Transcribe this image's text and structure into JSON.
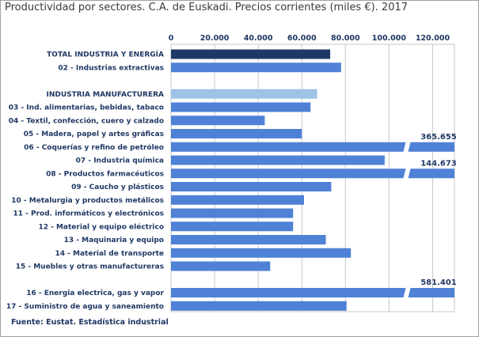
{
  "chart_data": {
    "type": "bar",
    "orientation": "horizontal",
    "title": "Productividad por sectores. C.A. de Euskadi. Precios corrientes (miles €). 2017",
    "source": "Fuente: Eustat. Estadística industrial",
    "xlim": [
      0,
      130000
    ],
    "xticks": [
      "0",
      "20.000",
      "40.000",
      "60.000",
      "80.000",
      "100.000",
      "120.000"
    ],
    "xtick_values": [
      0,
      20000,
      40000,
      60000,
      80000,
      100000,
      120000
    ],
    "grid": true,
    "axis_position": "top",
    "categories": [
      {
        "label": "TOTAL INDUSTRIA Y ENERGÍA",
        "value": 73000,
        "color": "#1f3864",
        "slot": 0
      },
      {
        "label": "02 - Industrias extractivas",
        "value": 78000,
        "color": "#4f81d6",
        "slot": 1
      },
      {
        "label": "INDUSTRIA MANUFACTURERA",
        "value": 67000,
        "color": "#9dc3e6",
        "slot": 3
      },
      {
        "label": "03 - Ind. alimentarias, bebidas, tabaco",
        "value": 64000,
        "color": "#4f81d6",
        "slot": 4
      },
      {
        "label": "04 - Textil, confección, cuero y calzado",
        "value": 43000,
        "color": "#4f81d6",
        "slot": 5
      },
      {
        "label": "05 - Madera, papel y artes gráficas",
        "value": 60000,
        "color": "#4f81d6",
        "slot": 6
      },
      {
        "label": "06 - Coquerías y refino de petróleo",
        "value": 365655,
        "color": "#4f81d6",
        "slot": 7,
        "broken": true,
        "value_label": "365.655"
      },
      {
        "label": "07 - Industria química",
        "value": 98000,
        "color": "#4f81d6",
        "slot": 8
      },
      {
        "label": "08 - Productos farmacéuticos",
        "value": 144673,
        "color": "#4f81d6",
        "slot": 9,
        "broken": true,
        "value_label": "144.673"
      },
      {
        "label": "09 - Caucho y plásticos",
        "value": 73500,
        "color": "#4f81d6",
        "slot": 10
      },
      {
        "label": "10 - Metalurgia y productos metálicos",
        "value": 61000,
        "color": "#4f81d6",
        "slot": 11
      },
      {
        "label": "11 - Prod. informáticos y electrónicos",
        "value": 56000,
        "color": "#4f81d6",
        "slot": 12
      },
      {
        "label": "12 - Material y equipo eléctrico",
        "value": 56000,
        "color": "#4f81d6",
        "slot": 13
      },
      {
        "label": "13 - Maquinaria y equipo",
        "value": 71000,
        "color": "#4f81d6",
        "slot": 14
      },
      {
        "label": "14 - Material de transporte",
        "value": 82500,
        "color": "#4f81d6",
        "slot": 15
      },
      {
        "label": "15 - Muebles y otras manufactureras",
        "value": 45500,
        "color": "#4f81d6",
        "slot": 16
      },
      {
        "label": "16 - Energia electrica, gas y vapor",
        "value": 581401,
        "color": "#4f81d6",
        "slot": 18,
        "broken": true,
        "value_label": "581.401"
      },
      {
        "label": "17 - Suministro de agua y saneamiento",
        "value": 80500,
        "color": "#4f81d6",
        "slot": 19
      }
    ]
  }
}
